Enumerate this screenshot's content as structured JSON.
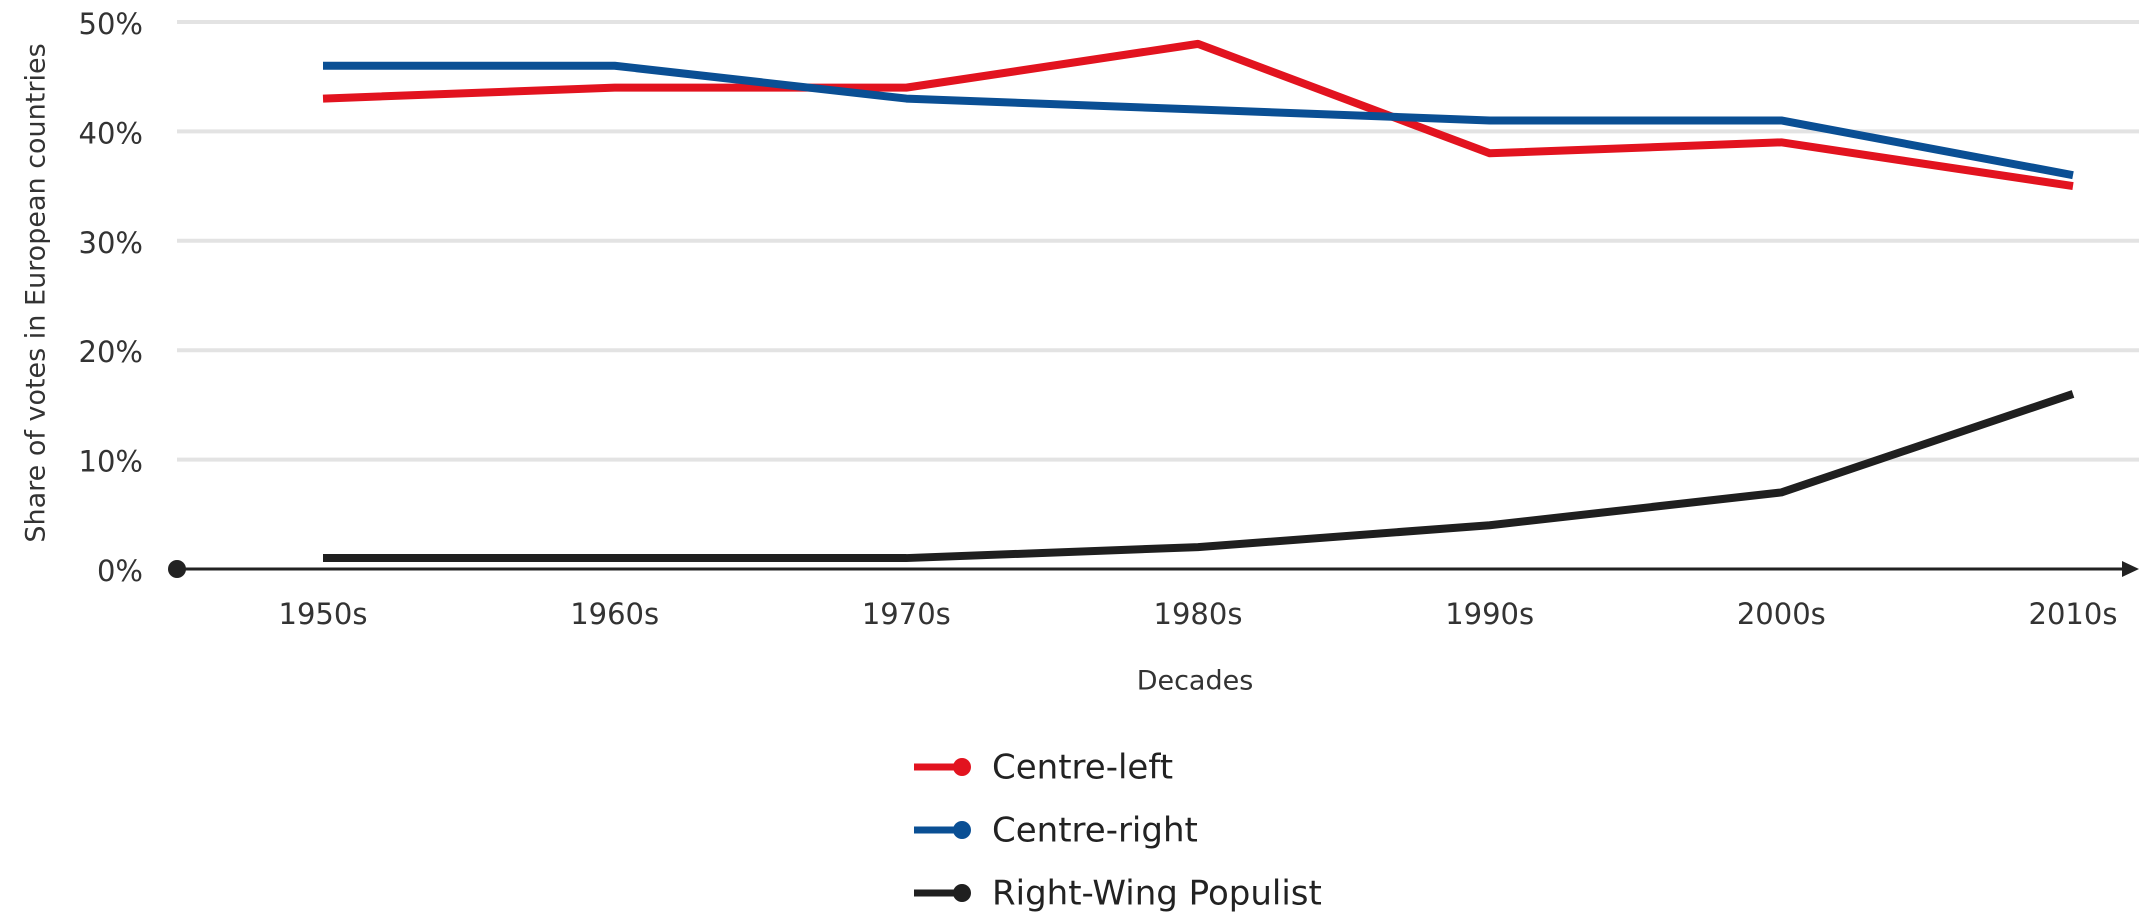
{
  "chart_data": {
    "type": "line",
    "categories": [
      "1950s",
      "1960s",
      "1970s",
      "1980s",
      "1990s",
      "2000s",
      "2010s"
    ],
    "series": [
      {
        "name": "Centre-left",
        "color": "#e2131f",
        "values": [
          43,
          44,
          44,
          48,
          38,
          39,
          35
        ]
      },
      {
        "name": "Centre-right",
        "color": "#0a4f94",
        "values": [
          46,
          46,
          43,
          42,
          41,
          41,
          36
        ]
      },
      {
        "name": "Right-Wing Populist",
        "color": "#1f1f1f",
        "values": [
          1,
          1,
          1,
          2,
          4,
          7,
          16
        ]
      }
    ],
    "xlabel": "Decades",
    "ylabel": "Share of votes in European countries",
    "ylim": [
      0,
      50
    ],
    "yticks": [
      {
        "value": 0,
        "label": "0%"
      },
      {
        "value": 10,
        "label": "10%"
      },
      {
        "value": 20,
        "label": "20%"
      },
      {
        "value": 30,
        "label": "30%"
      },
      {
        "value": 40,
        "label": "40%"
      },
      {
        "value": 50,
        "label": "50%"
      }
    ],
    "grid": true,
    "legend": "bottom"
  }
}
